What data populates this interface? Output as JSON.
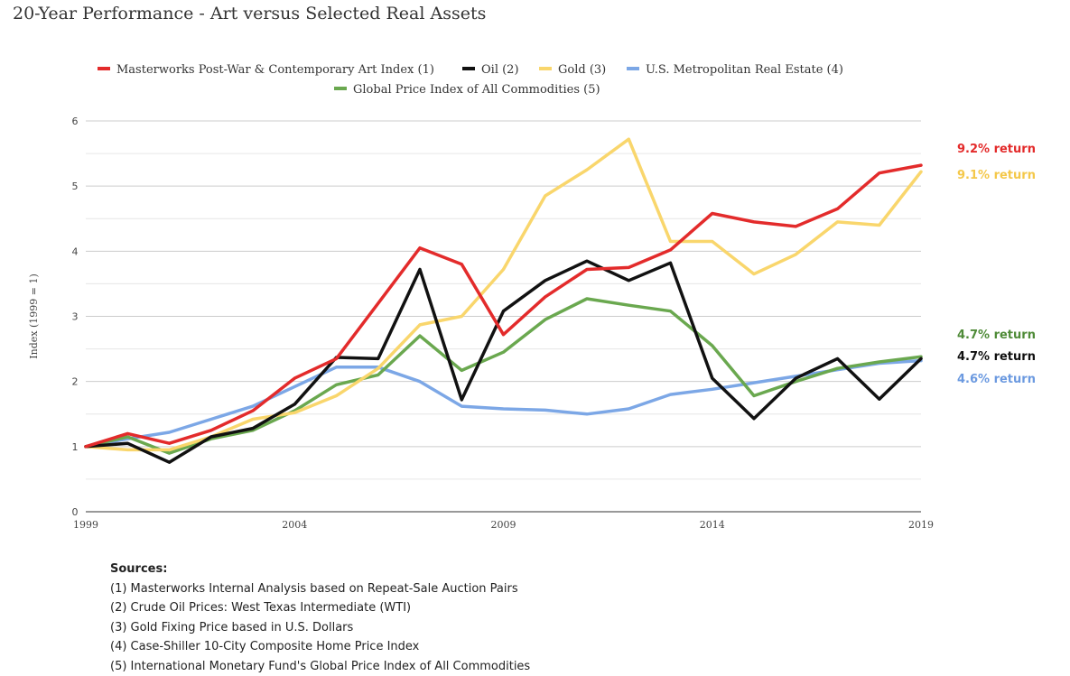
{
  "page": {
    "title": "20-Year Performance - Art versus Selected Real Assets"
  },
  "chart_data": {
    "type": "line",
    "title": "",
    "xlabel": "",
    "ylabel": "Index (1999 = 1)",
    "xlim": [
      1999,
      2019
    ],
    "ylim": [
      0,
      6
    ],
    "x_ticks": [
      "1999",
      "2004",
      "2009",
      "2014",
      "2019"
    ],
    "y_ticks": [
      "0",
      "1",
      "2",
      "3",
      "4",
      "5",
      "6"
    ],
    "grid": true,
    "legend_position": "top",
    "x": [
      1999,
      2000,
      2001,
      2002,
      2003,
      2004,
      2005,
      2006,
      2007,
      2008,
      2009,
      2010,
      2011,
      2012,
      2013,
      2014,
      2015,
      2016,
      2017,
      2018,
      2019
    ],
    "series": [
      {
        "name": "Masterworks Post-War & Contemporary Art Index (1)",
        "color": "#e32b2b",
        "values": [
          1.0,
          1.2,
          1.05,
          1.25,
          1.55,
          2.05,
          2.35,
          3.2,
          4.05,
          3.8,
          2.72,
          3.3,
          3.72,
          3.75,
          4.02,
          4.58,
          4.45,
          4.38,
          4.65,
          5.2,
          5.32
        ],
        "return_label": "9.2% return"
      },
      {
        "name": "Oil (2)",
        "color": "#111111",
        "values": [
          1.0,
          1.05,
          0.76,
          1.15,
          1.28,
          1.65,
          2.37,
          2.35,
          3.72,
          1.72,
          3.08,
          3.55,
          3.85,
          3.55,
          3.82,
          2.05,
          1.43,
          2.05,
          2.35,
          1.73,
          2.35
        ],
        "return_label": "4.7% return"
      },
      {
        "name": "Gold (3)",
        "color": "#f9d66c",
        "values": [
          1.0,
          0.95,
          0.95,
          1.15,
          1.42,
          1.52,
          1.78,
          2.2,
          2.87,
          3.0,
          3.72,
          4.85,
          5.25,
          5.72,
          4.15,
          4.15,
          3.65,
          3.95,
          4.45,
          4.4,
          5.22
        ],
        "return_label": "9.1% return"
      },
      {
        "name": "U.S. Metropolitan Real Estate (4)",
        "color": "#7ca7e6",
        "values": [
          1.0,
          1.12,
          1.22,
          1.42,
          1.62,
          1.92,
          2.22,
          2.22,
          2.0,
          1.62,
          1.58,
          1.56,
          1.5,
          1.58,
          1.8,
          1.88,
          1.98,
          2.08,
          2.18,
          2.28,
          2.32
        ],
        "return_label": "4.6% return"
      },
      {
        "name": "Global Price Index of All Commodities (5)",
        "color": "#6aa84f",
        "values": [
          1.0,
          1.15,
          0.9,
          1.12,
          1.25,
          1.55,
          1.95,
          2.1,
          2.7,
          2.17,
          2.45,
          2.95,
          3.27,
          3.17,
          3.08,
          2.55,
          1.78,
          2.0,
          2.2,
          2.3,
          2.38
        ],
        "return_label": "4.7% return"
      }
    ],
    "return_labels_order": [
      0,
      2,
      4,
      1,
      3
    ]
  },
  "sources": {
    "heading": "Sources:",
    "items": [
      "(1) Masterworks Internal Analysis based on Repeat-Sale Auction Pairs",
      "(2) Crude Oil Prices: West Texas Intermediate (WTI)",
      "(3) Gold Fixing Price based in U.S. Dollars",
      "(4) Case-Shiller 10-City Composite Home Price Index",
      "(5) International Monetary Fund's Global Price Index of All Commodities"
    ]
  }
}
